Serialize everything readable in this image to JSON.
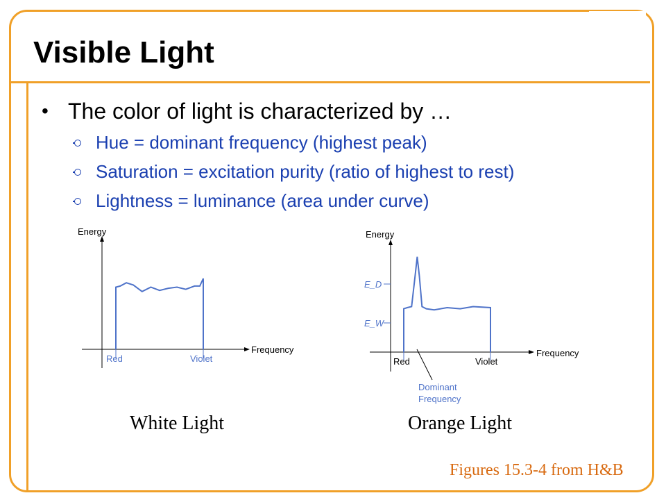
{
  "slide": {
    "title": "Visible Light",
    "main_bullet": "The color of light is characterized by …",
    "sub_bullets": [
      "Hue = dominant frequency (highest peak)",
      "Saturation = excitation purity (ratio of highest to rest)",
      "Lightness = luminance (area under curve)"
    ],
    "credit": "Figures 15.3-4 from H&B",
    "colors": {
      "frame": "#f0a028",
      "sub_text": "#1a3fb0",
      "figure_label": "#4f73c9",
      "credit": "#d86a10"
    }
  },
  "chart_data": [
    {
      "type": "line",
      "caption": "White Light",
      "ylabel": "Energy",
      "xlabel": "Frequency",
      "x_tick_labels": [
        "Red",
        "Violet"
      ],
      "x": [
        0,
        0.05,
        0.12,
        0.2,
        0.3,
        0.4,
        0.5,
        0.6,
        0.7,
        0.8,
        0.9,
        0.96,
        1.0
      ],
      "y": [
        0.57,
        0.58,
        0.61,
        0.59,
        0.53,
        0.57,
        0.54,
        0.56,
        0.57,
        0.55,
        0.58,
        0.58,
        0.65
      ]
    },
    {
      "type": "line",
      "caption": "Orange Light",
      "ylabel": "Energy",
      "xlabel": "Frequency",
      "x_tick_labels": [
        "Red",
        "Violet"
      ],
      "y_tick_labels": [
        "E_D",
        "E_W"
      ],
      "annotation": [
        "Dominant",
        "Frequency"
      ],
      "x": [
        0,
        0.04,
        0.09,
        0.13,
        0.155,
        0.18,
        0.21,
        0.26,
        0.35,
        0.5,
        0.65,
        0.8,
        1.0
      ],
      "y": [
        0.4,
        0.41,
        0.42,
        0.7,
        0.88,
        0.7,
        0.42,
        0.4,
        0.39,
        0.41,
        0.4,
        0.42,
        0.41
      ]
    }
  ]
}
